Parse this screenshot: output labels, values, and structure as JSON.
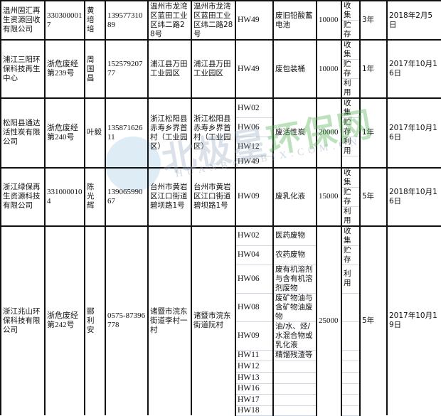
{
  "rows": [
    {
      "company": "温州固汇再生资源回收有限公司",
      "license": "3303000017",
      "contact": "黄 培 培",
      "phone": "13957731089",
      "address1": "温州市龙湾区蓝田工业区纬二路28号",
      "address2": "温州市龙湾区蓝田工业区纬二路28号",
      "hw": [
        "HW49"
      ],
      "names": [
        "废旧铅酸蓄电池"
      ],
      "quantity": "10000",
      "ops": [
        "收集",
        "贮存"
      ],
      "term": "3年",
      "date": "2018年2月5日"
    },
    {
      "company": "浦江三阳环保科技再生中心",
      "license": "浙危废经第239号",
      "contact": "周 国 昌",
      "phone": "15257920777",
      "address1": "浦江县万田工业园区",
      "address2": "浦江县万田工业园区",
      "hw": [
        "HW49"
      ],
      "names": [
        "废包装桶"
      ],
      "quantity": "10000",
      "ops": [
        "收集",
        "贮存",
        "利用"
      ],
      "term": "1年",
      "date": "2017年10月16日"
    },
    {
      "company": "松阳县通达活性炭有限公司",
      "license": "浙危废经第240号",
      "contact": "叶毅",
      "phone": "13587162611",
      "address1": "浙江松阳县赤寿乡界首村（工业园区）",
      "address2": "浙江松阳县赤寿乡界首村（工业园区）",
      "hw": [
        "HW02",
        "HW06",
        "HW12",
        "HW49"
      ],
      "names": [
        "废活性炭"
      ],
      "quantity": "20000",
      "ops": [
        "收集",
        "贮存",
        "利用"
      ],
      "term": "1年",
      "date": "2017年10月16日"
    },
    {
      "company": "浙江绿保再生资源科技有限公司",
      "license": "3310000104",
      "contact": "陈 光 辉",
      "phone": "13906599067",
      "address1": "台州市黄岩区江口街道碧坝路1号",
      "address2": "台州市黄岩区江口街道碧坝路1号",
      "hw": [
        "HW09"
      ],
      "names": [
        "废乳化液"
      ],
      "quantity": "15000",
      "ops": [
        "收集",
        "贮存",
        "利用"
      ],
      "term": "5年",
      "date": "2018年10月16日"
    },
    {
      "company": "浙江兆山环保科技有限公司",
      "license": "浙危废经第242号",
      "contact": "郦 利 安",
      "phone": "0575-87396778",
      "address1": "诸暨市浣东街道李村一村",
      "address2": "诸暨市浣东街道阮村",
      "hw": [
        "HW02",
        "HW04",
        "HW06",
        "HW08",
        "HW09",
        "HW11",
        "HW12",
        "HW13",
        "HW16",
        "HW17",
        "HW18"
      ],
      "names": [
        "医药废物",
        "农药废物",
        "废有机溶剂与含有机溶剂废物",
        "废矿物油与含矿物油废物",
        "油/水、烃/水混合物或乳化液",
        "精馏残渣等",
        "",
        "",
        "",
        "",
        ""
      ],
      "quantity": "25000",
      "ops": [
        "收集",
        "贮存",
        "利用"
      ],
      "term": "5年",
      "date": "2017年10月19日"
    }
  ],
  "watermark": {
    "text_a": "北极星",
    "text_b": "环保网",
    "sub": "HUANBAO.BJX.COM.CN"
  }
}
